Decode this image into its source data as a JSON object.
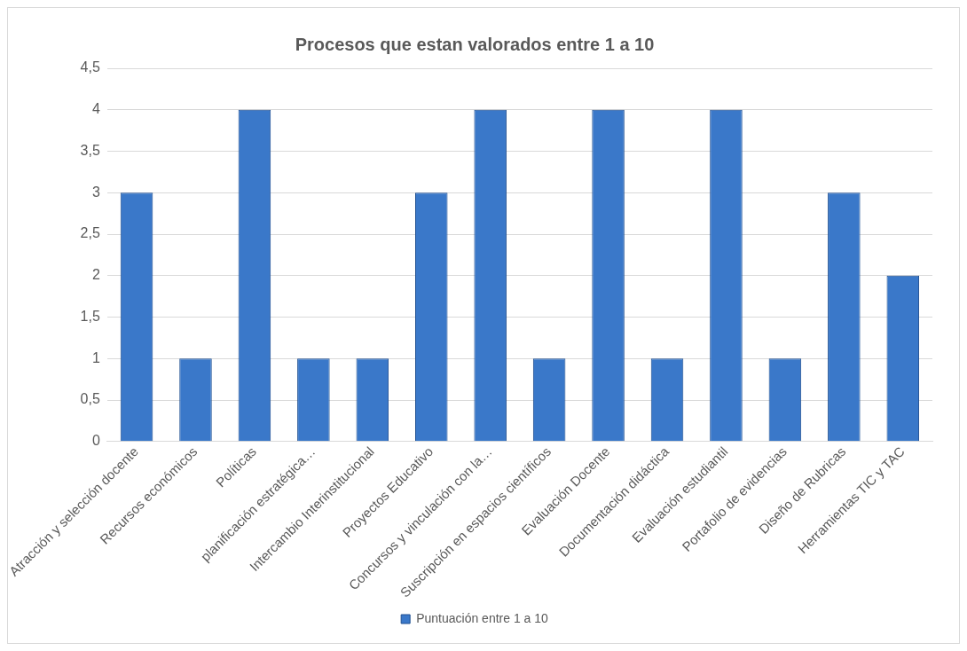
{
  "chart_data": {
    "type": "bar",
    "title": "Procesos que estan valorados entre 1 a 10",
    "categories": [
      "Atracción y selección docente",
      "Recursos económicos",
      "Políticas",
      "planificación estratégica…",
      "Intercambio Interinstitucional",
      "Proyectos Educativo",
      "Concursos y vinculación con la…",
      "Suscripción en espacios científicos",
      "Evaluación Docente",
      "Documentación didáctica",
      "Evaluación estudiantil",
      "Portafolio de evidencias",
      "Diseño de Rubricas",
      "Herramientas TIC y TAC"
    ],
    "series": [
      {
        "name": "Puntuación entre 1 a 10",
        "color": "#3a78c9",
        "values": [
          3,
          1,
          4,
          1,
          1,
          3,
          4,
          1,
          4,
          1,
          4,
          1,
          3,
          2
        ]
      }
    ],
    "ylim": [
      0,
      4.5
    ],
    "yticks": [
      0,
      {
        "value": 0.5,
        "label": "0,5"
      },
      1,
      {
        "value": 1.5,
        "label": "1,5"
      },
      2,
      {
        "value": 2.5,
        "label": "2,5"
      },
      3,
      {
        "value": 3.5,
        "label": "3,5"
      },
      4,
      {
        "value": 4.5,
        "label": "4,5"
      }
    ],
    "grid": "y",
    "legend": "bottom"
  }
}
